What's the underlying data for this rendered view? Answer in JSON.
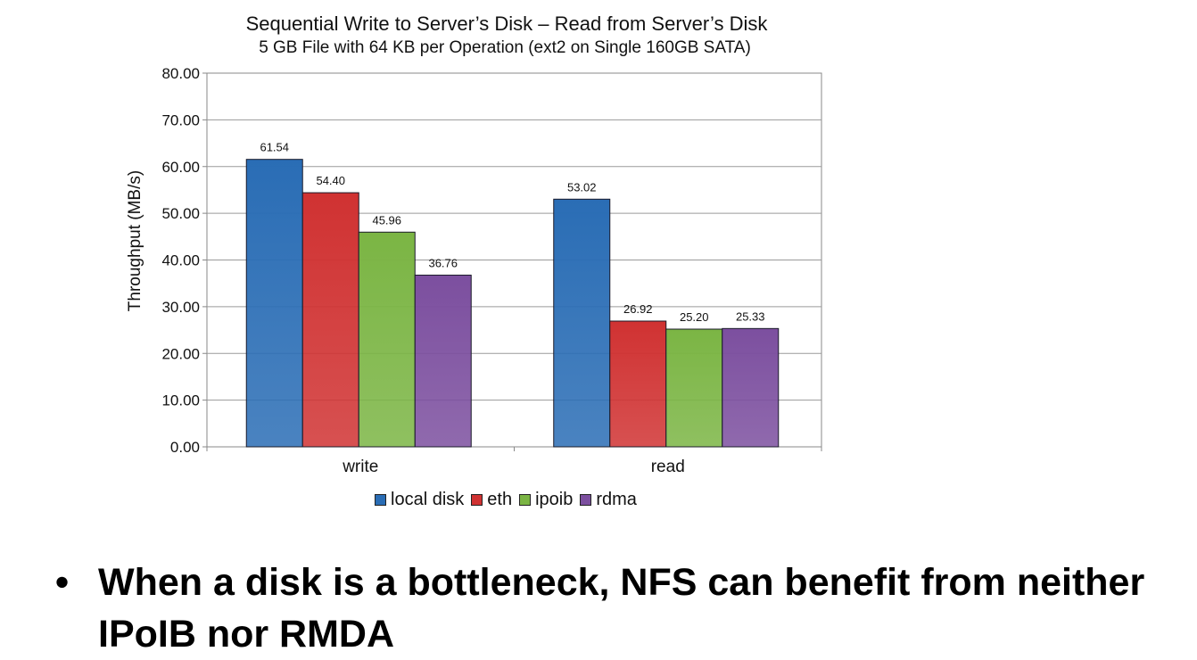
{
  "chart_data": {
    "type": "bar",
    "title": "Sequential Write to Server’s Disk –  Read from Server’s Disk",
    "subtitle": "5 GB File with 64 KB per Operation (ext2 on Single 160GB SATA)",
    "xlabel": "",
    "ylabel": "Throughput (MB/s)",
    "ylim": [
      0,
      80
    ],
    "yticks": [
      "0.00",
      "10.00",
      "20.00",
      "30.00",
      "40.00",
      "50.00",
      "60.00",
      "70.00",
      "80.00"
    ],
    "grid": true,
    "legend_position": "bottom",
    "categories": [
      "write",
      "read"
    ],
    "series": [
      {
        "name": "local disk",
        "values": [
          61.54,
          53.02
        ],
        "labels": [
          "61.54",
          "53.02"
        ],
        "color": "#2a6db5"
      },
      {
        "name": "eth",
        "values": [
          54.4,
          26.92
        ],
        "labels": [
          "54.40",
          "26.92"
        ],
        "color": "#d03232"
      },
      {
        "name": "ipoib",
        "values": [
          45.96,
          25.2
        ],
        "labels": [
          "45.96",
          "25.20"
        ],
        "color": "#7bb544"
      },
      {
        "name": "rdma",
        "values": [
          36.76,
          25.33
        ],
        "labels": [
          "36.76",
          "25.33"
        ],
        "color": "#7c4f9f"
      }
    ]
  },
  "bullet": {
    "symbol": "•",
    "text": "When a disk is a bottleneck, NFS can benefit from neither IPoIB nor RMDA"
  }
}
